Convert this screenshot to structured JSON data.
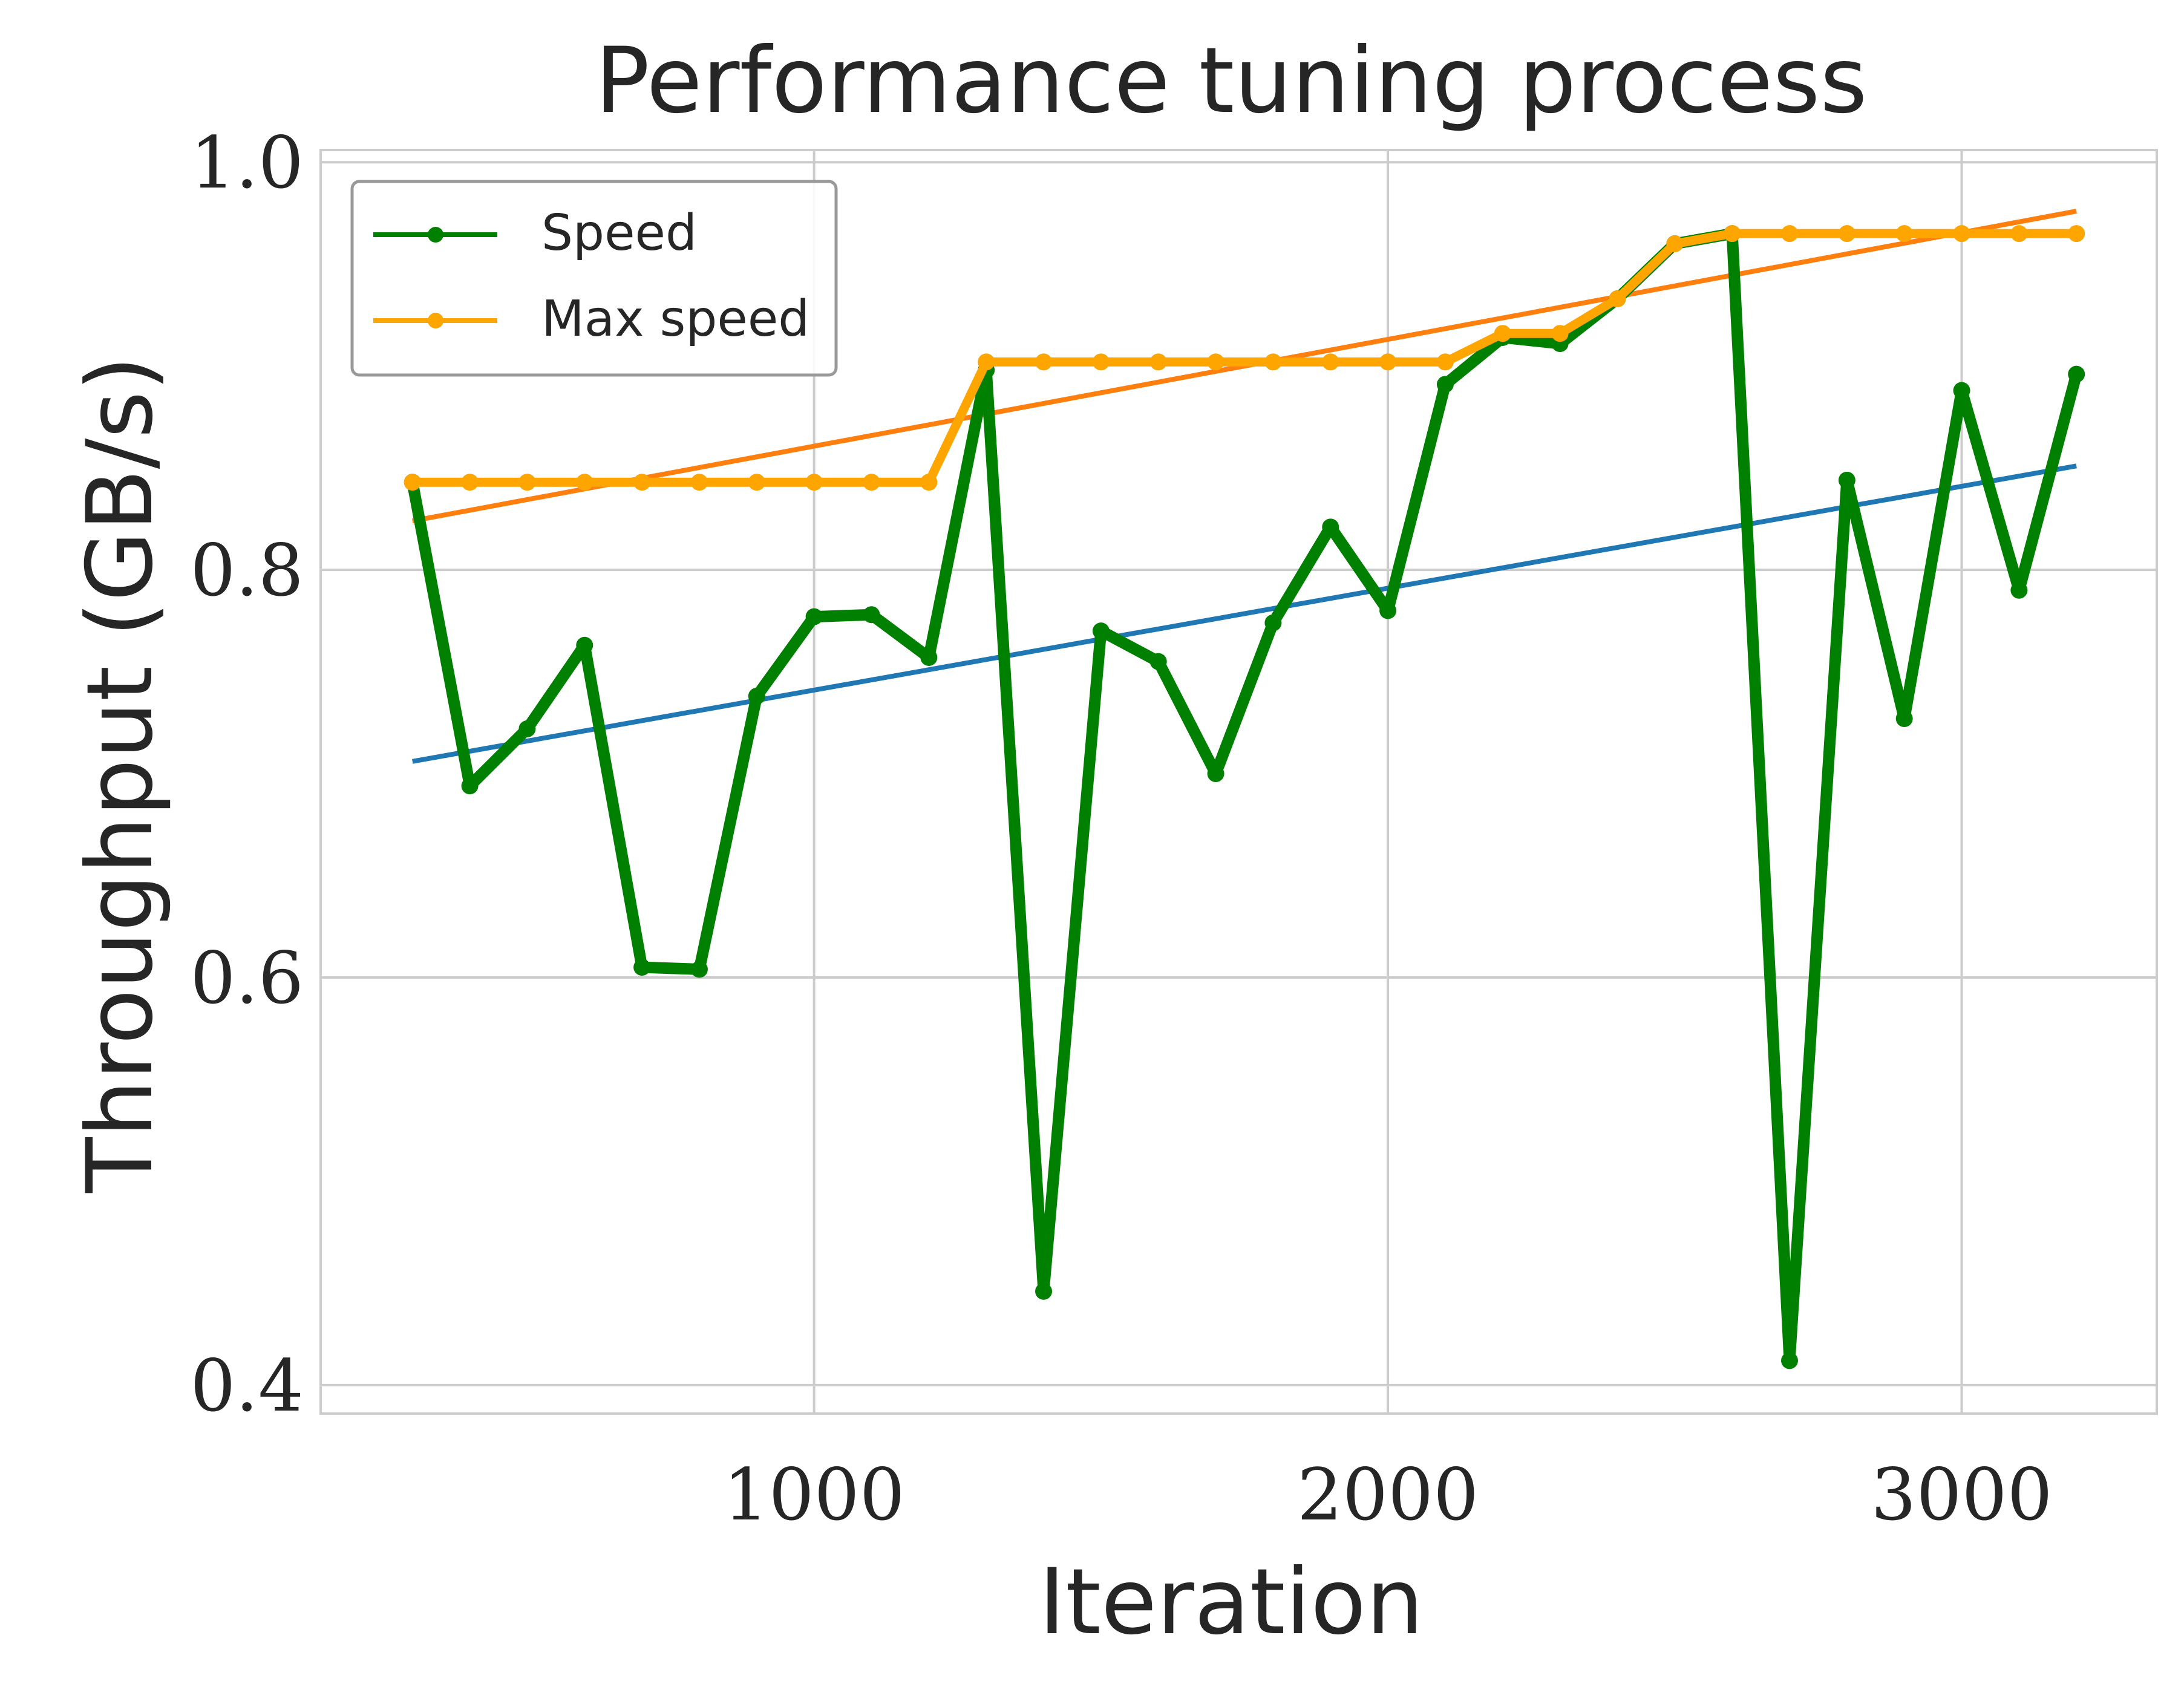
{
  "chart_data": {
    "type": "line",
    "title": "Performance tuning process",
    "xlabel": "Iteration",
    "ylabel": "Throughput (GB/s)",
    "xlim": [
      140,
      3340
    ],
    "ylim": [
      0.386,
      1.006
    ],
    "xticks": [
      1000,
      2000,
      3000
    ],
    "yticks": [
      0.4,
      0.6,
      0.8,
      1.0
    ],
    "xtick_labels": [
      "1000",
      "2000",
      "3000"
    ],
    "ytick_labels": [
      "0.4",
      "0.6",
      "0.8",
      "1.0"
    ],
    "grid": true,
    "legend_position": "top-left",
    "x": [
      300,
      400,
      500,
      600,
      700,
      800,
      900,
      1000,
      1100,
      1200,
      1300,
      1400,
      1500,
      1600,
      1700,
      1800,
      1900,
      2000,
      2100,
      2200,
      2300,
      2400,
      2500,
      2600,
      2700,
      2800,
      2900,
      3000,
      3100,
      3200
    ],
    "series": [
      {
        "name": "Speed",
        "color": "#008000",
        "markers": true,
        "values": [
          0.843,
          0.694,
          0.722,
          0.763,
          0.605,
          0.604,
          0.738,
          0.777,
          0.778,
          0.757,
          0.898,
          0.446,
          0.77,
          0.755,
          0.7,
          0.774,
          0.821,
          0.78,
          0.891,
          0.914,
          0.911,
          0.933,
          0.96,
          0.965,
          0.412,
          0.844,
          0.727,
          0.888,
          0.79,
          0.896
        ]
      },
      {
        "name": "Max speed",
        "color": "#ffa500",
        "markers": true,
        "values": [
          0.843,
          0.843,
          0.843,
          0.843,
          0.843,
          0.843,
          0.843,
          0.843,
          0.843,
          0.843,
          0.902,
          0.902,
          0.902,
          0.902,
          0.902,
          0.902,
          0.902,
          0.902,
          0.902,
          0.916,
          0.916,
          0.933,
          0.96,
          0.965,
          0.965,
          0.965,
          0.965,
          0.965,
          0.965,
          0.965
        ]
      }
    ],
    "trendlines": [
      {
        "of": "Speed",
        "color": "#1f77b4",
        "x": [
          300,
          3200
        ],
        "y": [
          0.706,
          0.851
        ]
      },
      {
        "of": "Max speed",
        "color": "#ff7f0e",
        "x": [
          300,
          3200
        ],
        "y": [
          0.824,
          0.976
        ]
      }
    ]
  }
}
